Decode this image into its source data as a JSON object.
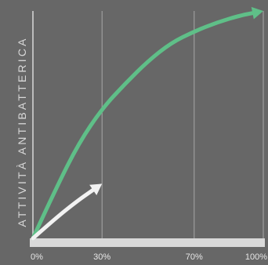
{
  "chart_data": {
    "type": "line",
    "title": "",
    "xlabel": "",
    "ylabel": "ATTIVITÀ ANTIBATTERICA",
    "x_ticks": [
      "0%",
      "30%",
      "70%",
      "100%"
    ],
    "x_tick_values": [
      0,
      30,
      70,
      100
    ],
    "xlim": [
      0,
      100
    ],
    "ylim": [
      0,
      100
    ],
    "grid": true,
    "y_axis_has_numeric_ticks": false,
    "series": [
      {
        "color": "#5fbf88",
        "style": "arrow",
        "x": [
          0,
          10,
          20,
          30,
          40,
          50,
          60,
          70,
          80,
          90,
          100
        ],
        "y": [
          0,
          22,
          42,
          57,
          68,
          78,
          86,
          91,
          95,
          98,
          100
        ]
      },
      {
        "color": "#f2f2f2",
        "style": "arrow",
        "x": [
          0,
          10,
          20,
          30
        ],
        "y": [
          0,
          9,
          17,
          24
        ]
      }
    ]
  },
  "colors": {
    "background": "#676767",
    "axis": "#d9d9d9",
    "gridline": "#a8a8a8",
    "tick_label": "#e6e6e6"
  }
}
